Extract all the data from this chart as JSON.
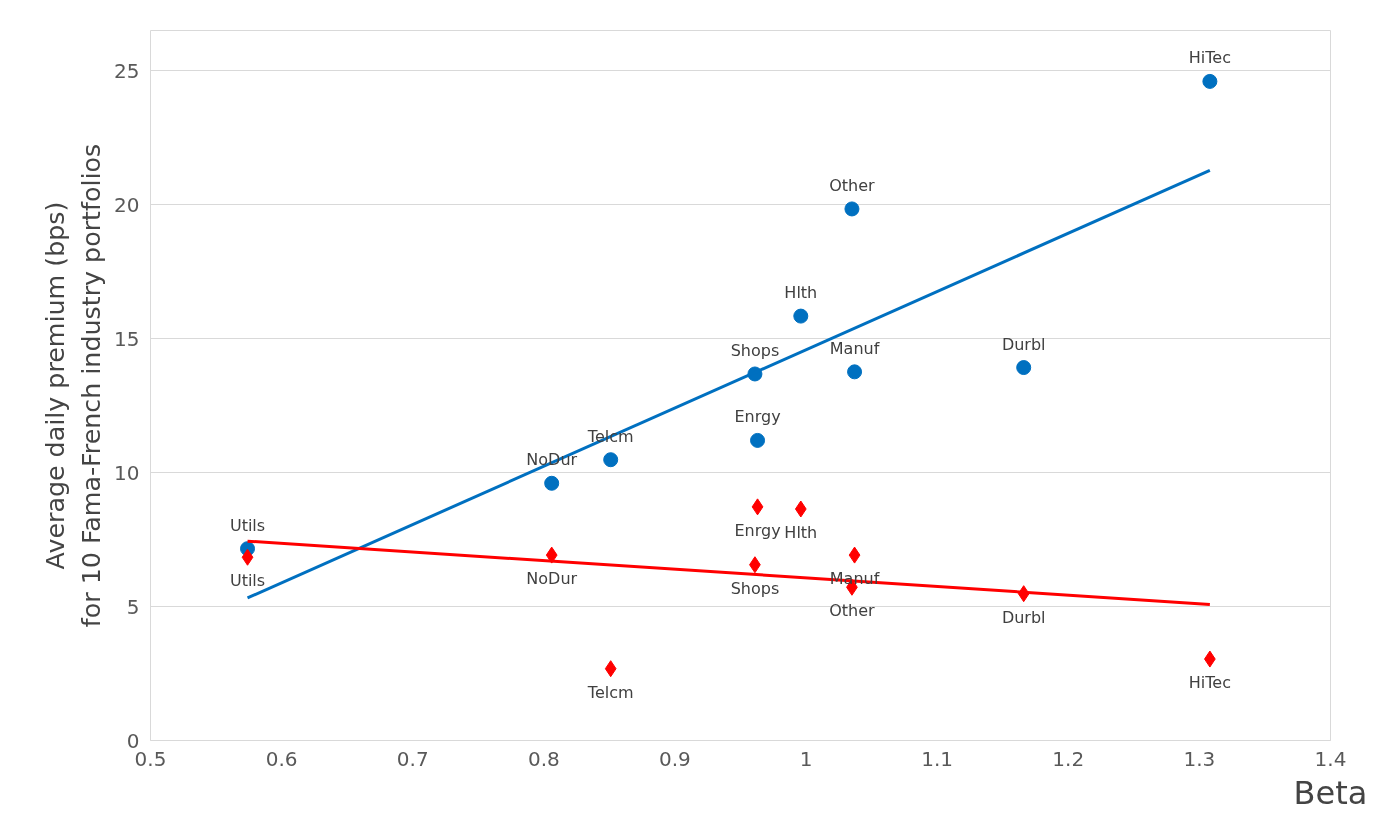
{
  "chart_data": {
    "type": "scatter",
    "xlabel": "Beta",
    "ylabel": "Average daily premium (bps)\nfor 10 Fama-French industry portfolios",
    "xlim": [
      0.5,
      1.4
    ],
    "xticks": [
      0.5,
      0.6,
      0.7,
      0.8,
      0.9,
      1,
      1.1,
      1.2,
      1.3,
      1.4
    ],
    "ylim": [
      0,
      26.5
    ],
    "yticks": [
      0,
      5,
      10,
      15,
      20,
      25
    ],
    "grid": "y",
    "series": [
      {
        "marker": "circle",
        "color": "#0070c0",
        "x": [
          0.574,
          0.806,
          0.851,
          0.961,
          0.963,
          0.996,
          1.035,
          1.037,
          1.166,
          1.308
        ],
        "values": [
          7.16,
          9.6,
          10.48,
          13.68,
          11.2,
          15.84,
          19.84,
          13.76,
          13.92,
          24.6
        ]
      },
      {
        "marker": "diamond",
        "color": "#ff0000",
        "x": [
          0.574,
          0.806,
          0.851,
          0.961,
          0.963,
          0.996,
          1.035,
          1.037,
          1.166,
          1.308
        ],
        "values": [
          6.84,
          6.92,
          2.68,
          6.56,
          8.72,
          8.64,
          5.72,
          6.92,
          5.48,
          3.04
        ]
      },
      {
        "type": "line",
        "color": "#0070c0",
        "x": [
          0.574,
          1.308
        ],
        "values": [
          5.32,
          21.28
        ]
      },
      {
        "type": "line",
        "color": "#ff0000",
        "x": [
          0.574,
          1.308
        ],
        "values": [
          7.44,
          5.08
        ]
      }
    ],
    "annotations": [
      {
        "text": "Utils",
        "x": 0.574,
        "y": 7.16
      },
      {
        "text": "NoDur",
        "x": 0.806,
        "y": 9.6
      },
      {
        "text": "Telcm",
        "x": 0.851,
        "y": 10.48
      },
      {
        "text": "Shops",
        "x": 0.961,
        "y": 13.68
      },
      {
        "text": "Enrgy",
        "x": 0.963,
        "y": 11.2
      },
      {
        "text": "Hlth",
        "x": 0.996,
        "y": 15.84
      },
      {
        "text": "Other",
        "x": 1.035,
        "y": 19.84
      },
      {
        "text": "Manuf",
        "x": 1.037,
        "y": 13.76
      },
      {
        "text": "Durbl",
        "x": 1.166,
        "y": 13.92
      },
      {
        "text": "HiTec",
        "x": 1.308,
        "y": 24.6
      },
      {
        "text": "Utils",
        "x": 0.574,
        "y": 6.84
      },
      {
        "text": "NoDur",
        "x": 0.806,
        "y": 6.92
      },
      {
        "text": "Telcm",
        "x": 0.851,
        "y": 2.68
      },
      {
        "text": "Shops",
        "x": 0.961,
        "y": 6.56
      },
      {
        "text": "Enrgy",
        "x": 0.963,
        "y": 8.72
      },
      {
        "text": "Hlth",
        "x": 0.996,
        "y": 8.64
      },
      {
        "text": "Other",
        "x": 1.035,
        "y": 5.72
      },
      {
        "text": "Manuf",
        "x": 1.037,
        "y": 6.92
      },
      {
        "text": "Durbl",
        "x": 1.166,
        "y": 5.48
      },
      {
        "text": "HiTec",
        "x": 1.308,
        "y": 3.04
      }
    ]
  }
}
